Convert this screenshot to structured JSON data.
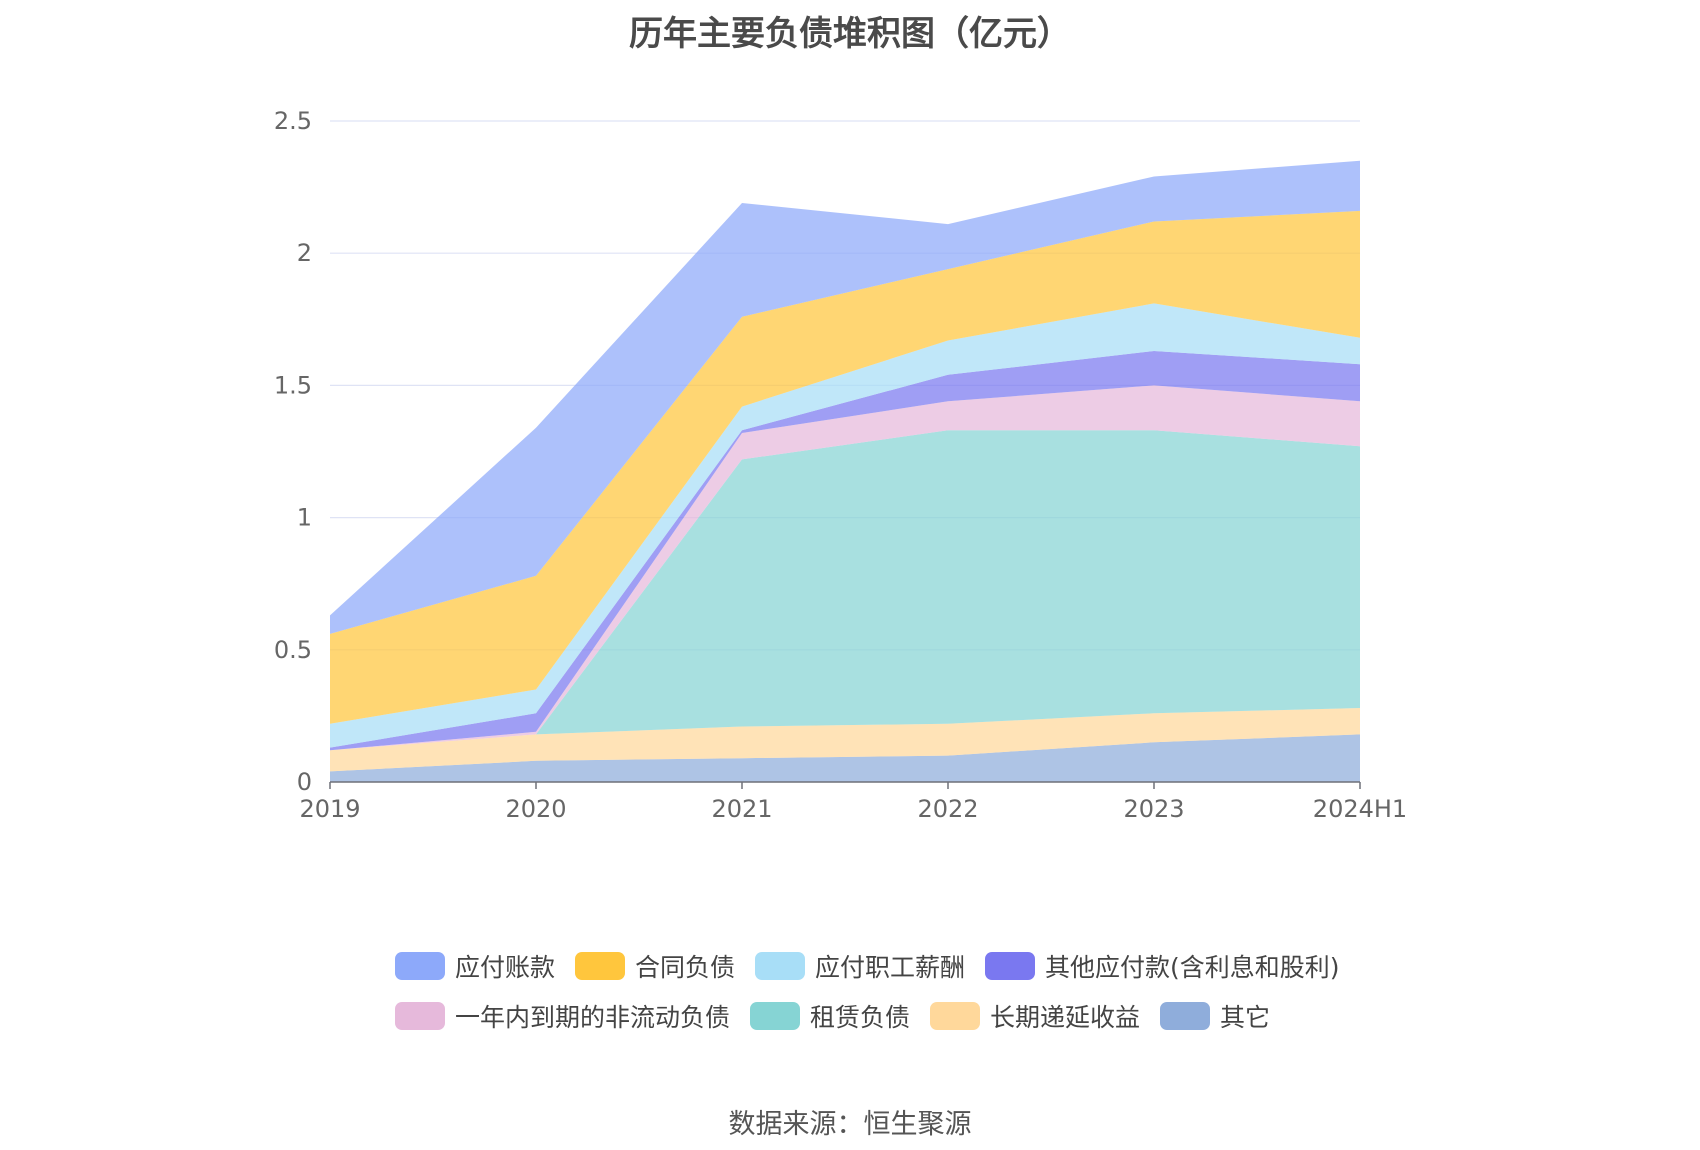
{
  "chart_data": {
    "type": "area",
    "stacked": true,
    "title": "历年主要负债堆积图（亿元）",
    "x": [
      "2019",
      "2020",
      "2021",
      "2022",
      "2023",
      "2024H1"
    ],
    "y_ticks": [
      "0",
      "0.5",
      "1",
      "1.5",
      "2",
      "2.5"
    ],
    "ylim": [
      0,
      2.5
    ],
    "grid": true,
    "legend_position": "bottom",
    "series": [
      {
        "name": "其它",
        "color": "#8FADDB",
        "values": [
          0.04,
          0.08,
          0.09,
          0.1,
          0.15,
          0.18
        ]
      },
      {
        "name": "长期递延收益",
        "color": "#FFD89B",
        "values": [
          0.08,
          0.1,
          0.12,
          0.12,
          0.11,
          0.1
        ]
      },
      {
        "name": "租赁负债",
        "color": "#86D4D4",
        "values": [
          0.0,
          0.0,
          1.01,
          1.11,
          1.07,
          0.99
        ]
      },
      {
        "name": "一年内到期的非流动负债",
        "color": "#E6B9DB",
        "values": [
          0.0,
          0.01,
          0.1,
          0.11,
          0.17,
          0.17
        ]
      },
      {
        "name": "其他应付款(含利息和股利)",
        "color": "#7A78F0",
        "values": [
          0.01,
          0.07,
          0.01,
          0.1,
          0.13,
          0.14
        ]
      },
      {
        "name": "应付职工薪酬",
        "color": "#A8DEF7",
        "values": [
          0.09,
          0.09,
          0.09,
          0.13,
          0.18,
          0.1
        ]
      },
      {
        "name": "合同负债",
        "color": "#FFC63D",
        "values": [
          0.34,
          0.43,
          0.34,
          0.27,
          0.31,
          0.48
        ]
      },
      {
        "name": "应付账款",
        "color": "#8DA9FA",
        "values": [
          0.07,
          0.56,
          0.43,
          0.17,
          0.17,
          0.19
        ]
      }
    ]
  },
  "legend": [
    {
      "label": "应付账款",
      "color": "#8DA9FA"
    },
    {
      "label": "合同负债",
      "color": "#FFC63D"
    },
    {
      "label": "应付职工薪酬",
      "color": "#A8DEF7"
    },
    {
      "label": "其他应付款(含利息和股利)",
      "color": "#7A78F0"
    },
    {
      "label": "一年内到期的非流动负债",
      "color": "#E6B9DB"
    },
    {
      "label": "租赁负债",
      "color": "#86D4D4"
    },
    {
      "label": "长期递延收益",
      "color": "#FFD89B"
    },
    {
      "label": "其它",
      "color": "#8FADDB"
    }
  ],
  "source_text": "数据来源：恒生聚源"
}
